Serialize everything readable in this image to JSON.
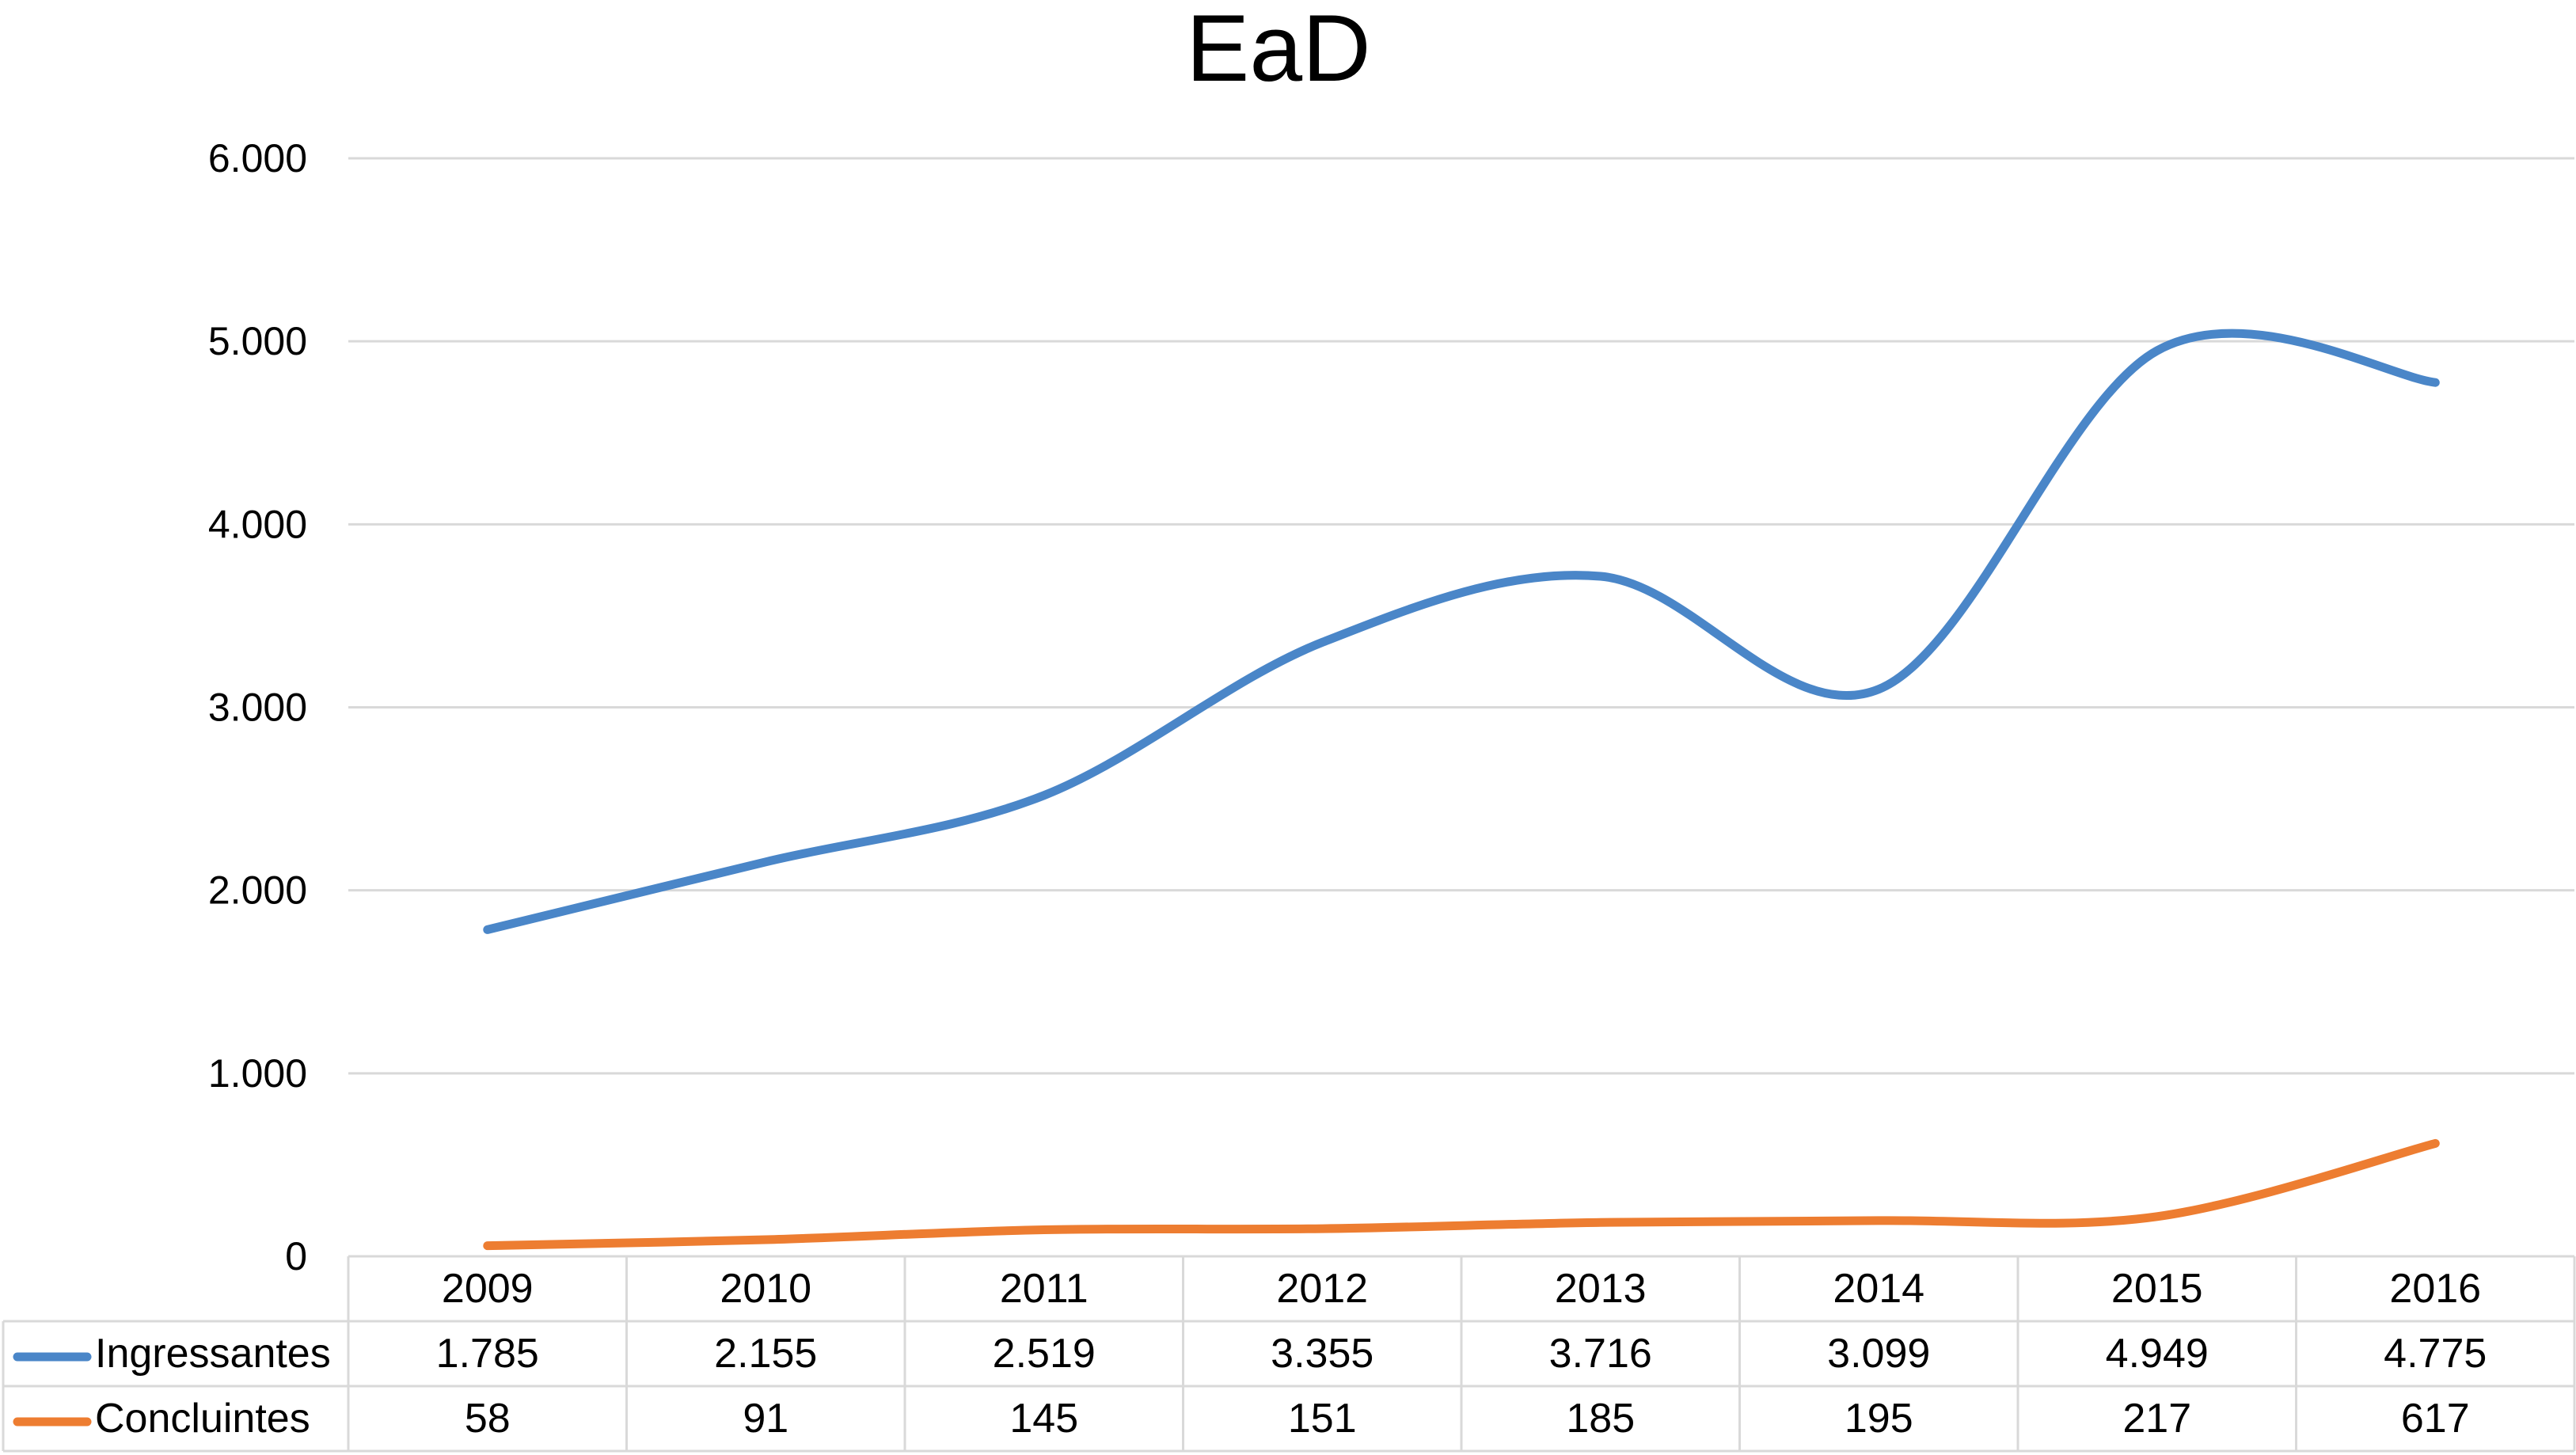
{
  "chart_data": {
    "type": "line",
    "title": "EaD",
    "categories": [
      "2009",
      "2010",
      "2011",
      "2012",
      "2013",
      "2014",
      "2015",
      "2016"
    ],
    "series": [
      {
        "name": "Ingressantes",
        "color": "#4A86C8",
        "values": [
          1785,
          2155,
          2519,
          3355,
          3716,
          3099,
          4949,
          4775
        ],
        "labels": [
          "1.785",
          "2.155",
          "2.519",
          "3.355",
          "3.716",
          "3.099",
          "4.949",
          "4.775"
        ]
      },
      {
        "name": "Concluintes",
        "color": "#ED7D31",
        "values": [
          58,
          91,
          145,
          151,
          185,
          195,
          217,
          617
        ],
        "labels": [
          "58",
          "91",
          "145",
          "151",
          "185",
          "195",
          "217",
          "617"
        ]
      }
    ],
    "ylim": [
      0,
      6000
    ],
    "yticks": [
      0,
      1000,
      2000,
      3000,
      4000,
      5000,
      6000
    ],
    "ytick_labels": [
      "0",
      "1.000",
      "2.000",
      "3.000",
      "4.000",
      "5.000",
      "6.000"
    ],
    "grid": true,
    "legend": "data-table-below",
    "smooth": true
  }
}
